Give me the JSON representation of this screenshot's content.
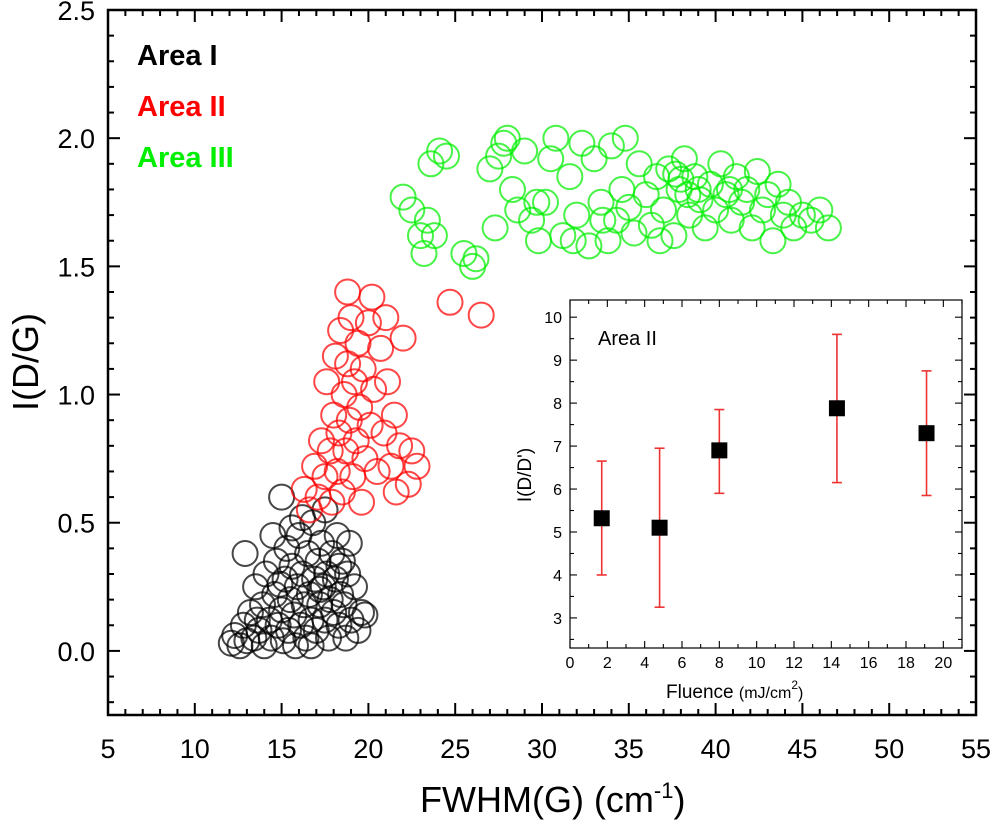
{
  "chart_data": [
    {
      "type": "scatter",
      "xlabel": "FWHM(G) (cm",
      "xlabel_superscript": "-1",
      "xlabel_suffix": ")",
      "ylabel": "I(D/G)",
      "xlim": [
        5,
        55
      ],
      "ylim": [
        -0.25,
        2.5
      ],
      "xticks": [
        "5",
        "10",
        "15",
        "20",
        "25",
        "30",
        "35",
        "40",
        "45",
        "50",
        "55"
      ],
      "yticks": [
        "0.0",
        "0.5",
        "1.0",
        "1.5",
        "2.0",
        "2.5"
      ],
      "legend_position": "top-left",
      "marker": "open-circle",
      "series": [
        {
          "name": "Area I",
          "color": "#000000",
          "points": [
            [
              12.1,
              0.03
            ],
            [
              12.3,
              0.06
            ],
            [
              12.6,
              0.02
            ],
            [
              12.8,
              0.1
            ],
            [
              13.0,
              0.04
            ],
            [
              13.2,
              0.15
            ],
            [
              13.4,
              0.05
            ],
            [
              13.5,
              0.25
            ],
            [
              13.7,
              0.08
            ],
            [
              13.9,
              0.18
            ],
            [
              14.0,
              0.02
            ],
            [
              14.1,
              0.3
            ],
            [
              14.3,
              0.12
            ],
            [
              14.4,
              0.05
            ],
            [
              14.6,
              0.22
            ],
            [
              14.7,
              0.35
            ],
            [
              14.8,
              0.1
            ],
            [
              15.0,
              0.16
            ],
            [
              15.1,
              0.04
            ],
            [
              15.2,
              0.28
            ],
            [
              15.3,
              0.4
            ],
            [
              15.4,
              0.08
            ],
            [
              15.5,
              0.2
            ],
            [
              15.6,
              0.33
            ],
            [
              15.7,
              0.14
            ],
            [
              15.8,
              0.02
            ],
            [
              15.9,
              0.25
            ],
            [
              16.0,
              0.45
            ],
            [
              16.1,
              0.1
            ],
            [
              16.2,
              0.3
            ],
            [
              16.3,
              0.18
            ],
            [
              16.4,
              0.05
            ],
            [
              16.5,
              0.38
            ],
            [
              16.6,
              0.22
            ],
            [
              16.7,
              0.12
            ],
            [
              16.8,
              0.5
            ],
            [
              16.9,
              0.28
            ],
            [
              17.0,
              0.08
            ],
            [
              17.1,
              0.35
            ],
            [
              17.2,
              0.18
            ],
            [
              17.3,
              0.42
            ],
            [
              17.4,
              0.25
            ],
            [
              17.5,
              0.12
            ],
            [
              17.6,
              0.3
            ],
            [
              17.7,
              0.05
            ],
            [
              17.8,
              0.2
            ],
            [
              17.9,
              0.38
            ],
            [
              18.0,
              0.15
            ],
            [
              18.1,
              0.28
            ],
            [
              18.2,
              0.45
            ],
            [
              18.3,
              0.1
            ],
            [
              18.4,
              0.22
            ],
            [
              18.5,
              0.35
            ],
            [
              18.6,
              0.18
            ],
            [
              18.7,
              0.05
            ],
            [
              18.8,
              0.3
            ],
            [
              19.0,
              0.12
            ],
            [
              19.2,
              0.25
            ],
            [
              19.4,
              0.08
            ],
            [
              19.6,
              0.15
            ],
            [
              12.9,
              0.38
            ],
            [
              14.5,
              0.45
            ],
            [
              16.2,
              0.52
            ],
            [
              17.5,
              0.55
            ],
            [
              19.8,
              0.14
            ],
            [
              18.9,
              0.42
            ],
            [
              13.6,
              0.12
            ],
            [
              14.9,
              0.26
            ],
            [
              15.6,
              0.48
            ],
            [
              16.7,
              0.02
            ],
            [
              17.2,
              0.24
            ],
            [
              18.3,
              0.33
            ],
            [
              15.0,
              0.6
            ]
          ]
        },
        {
          "name": "Area II",
          "color": "#ff0000",
          "points": [
            [
              16.3,
              0.63
            ],
            [
              16.6,
              0.55
            ],
            [
              16.9,
              0.72
            ],
            [
              17.1,
              0.6
            ],
            [
              17.3,
              0.82
            ],
            [
              17.5,
              0.68
            ],
            [
              17.6,
              1.05
            ],
            [
              17.8,
              0.78
            ],
            [
              17.9,
              0.58
            ],
            [
              18.0,
              0.92
            ],
            [
              18.1,
              1.15
            ],
            [
              18.2,
              0.7
            ],
            [
              18.3,
              0.85
            ],
            [
              18.4,
              1.25
            ],
            [
              18.5,
              0.62
            ],
            [
              18.6,
              1.0
            ],
            [
              18.7,
              0.78
            ],
            [
              18.8,
              1.12
            ],
            [
              18.9,
              0.9
            ],
            [
              19.0,
              1.3
            ],
            [
              19.1,
              0.68
            ],
            [
              19.2,
              1.05
            ],
            [
              19.3,
              0.82
            ],
            [
              19.4,
              1.2
            ],
            [
              19.5,
              0.95
            ],
            [
              19.6,
              0.58
            ],
            [
              19.7,
              1.1
            ],
            [
              19.8,
              0.75
            ],
            [
              20.0,
              1.28
            ],
            [
              20.1,
              0.88
            ],
            [
              20.3,
              1.02
            ],
            [
              20.5,
              0.7
            ],
            [
              20.7,
              1.18
            ],
            [
              20.9,
              0.85
            ],
            [
              21.1,
              1.05
            ],
            [
              21.3,
              0.72
            ],
            [
              21.5,
              0.92
            ],
            [
              21.8,
              0.8
            ],
            [
              22.0,
              1.22
            ],
            [
              22.3,
              0.65
            ],
            [
              22.5,
              0.78
            ],
            [
              22.8,
              0.72
            ],
            [
              20.2,
              1.38
            ],
            [
              24.7,
              1.36
            ],
            [
              26.5,
              1.31
            ],
            [
              18.8,
              1.4
            ],
            [
              21.0,
              1.3
            ],
            [
              21.6,
              0.62
            ]
          ]
        },
        {
          "name": "Area III",
          "color": "#00ee00",
          "points": [
            [
              22.0,
              1.77
            ],
            [
              22.5,
              1.72
            ],
            [
              23.0,
              1.62
            ],
            [
              23.2,
              1.55
            ],
            [
              23.4,
              1.68
            ],
            [
              23.6,
              1.9
            ],
            [
              23.8,
              1.62
            ],
            [
              24.1,
              1.95
            ],
            [
              24.5,
              1.93
            ],
            [
              25.5,
              1.55
            ],
            [
              26.0,
              1.5
            ],
            [
              26.2,
              1.53
            ],
            [
              27.0,
              1.88
            ],
            [
              27.3,
              1.65
            ],
            [
              27.5,
              1.93
            ],
            [
              27.8,
              1.98
            ],
            [
              28.0,
              2.0
            ],
            [
              28.3,
              1.8
            ],
            [
              28.6,
              1.72
            ],
            [
              29.0,
              1.95
            ],
            [
              29.4,
              1.68
            ],
            [
              29.8,
              1.6
            ],
            [
              30.2,
              1.75
            ],
            [
              30.5,
              1.92
            ],
            [
              30.8,
              2.0
            ],
            [
              31.2,
              1.62
            ],
            [
              31.6,
              1.85
            ],
            [
              32.0,
              1.7
            ],
            [
              32.3,
              1.98
            ],
            [
              32.7,
              1.58
            ],
            [
              33.0,
              1.92
            ],
            [
              33.4,
              1.75
            ],
            [
              33.8,
              1.6
            ],
            [
              34.0,
              1.97
            ],
            [
              34.3,
              1.68
            ],
            [
              34.6,
              1.8
            ],
            [
              35.0,
              1.73
            ],
            [
              35.3,
              1.63
            ],
            [
              35.6,
              1.9
            ],
            [
              36.0,
              1.78
            ],
            [
              36.3,
              1.66
            ],
            [
              36.6,
              1.85
            ],
            [
              37.0,
              1.72
            ],
            [
              37.3,
              1.88
            ],
            [
              37.6,
              1.62
            ],
            [
              37.9,
              1.8
            ],
            [
              38.2,
              1.92
            ],
            [
              38.5,
              1.7
            ],
            [
              38.8,
              1.85
            ],
            [
              39.1,
              1.76
            ],
            [
              39.4,
              1.65
            ],
            [
              39.7,
              1.82
            ],
            [
              40.0,
              1.72
            ],
            [
              40.3,
              1.9
            ],
            [
              40.6,
              1.78
            ],
            [
              40.9,
              1.68
            ],
            [
              41.2,
              1.85
            ],
            [
              41.5,
              1.75
            ],
            [
              41.8,
              1.8
            ],
            [
              42.1,
              1.65
            ],
            [
              42.4,
              1.87
            ],
            [
              42.7,
              1.72
            ],
            [
              43.0,
              1.78
            ],
            [
              43.3,
              1.6
            ],
            [
              43.6,
              1.82
            ],
            [
              43.9,
              1.7
            ],
            [
              44.2,
              1.75
            ],
            [
              44.5,
              1.65
            ],
            [
              45.0,
              1.7
            ],
            [
              45.5,
              1.68
            ],
            [
              46.0,
              1.72
            ],
            [
              46.5,
              1.65
            ],
            [
              38.0,
              1.84
            ],
            [
              38.4,
              1.78
            ],
            [
              37.7,
              1.86
            ],
            [
              39.0,
              1.8
            ],
            [
              34.8,
              2.0
            ],
            [
              31.8,
              1.6
            ],
            [
              36.8,
              1.6
            ],
            [
              33.5,
              1.68
            ],
            [
              29.7,
              1.75
            ],
            [
              40.8,
              1.8
            ]
          ]
        }
      ]
    },
    {
      "type": "scatter",
      "title": "Area II",
      "xlabel": "Fluence ",
      "xlabel_unit": "(mJ/cm",
      "xlabel_superscript": "2",
      "xlabel_suffix": ")",
      "ylabel": "I(D/D')",
      "xlim": [
        0,
        21
      ],
      "ylim": [
        2.3,
        10.4
      ],
      "xticks": [
        "0",
        "2",
        "4",
        "6",
        "8",
        "10",
        "12",
        "14",
        "16",
        "18",
        "20"
      ],
      "yticks": [
        "3",
        "4",
        "5",
        "6",
        "7",
        "8",
        "9",
        "10"
      ],
      "marker": "filled-square",
      "marker_color": "#000000",
      "errorbar_color": "#ee3333",
      "series": [
        {
          "name": "Area II",
          "points": [
            {
              "x": 1.7,
              "y": 5.32,
              "lo": 4.0,
              "hi": 6.65
            },
            {
              "x": 4.8,
              "y": 5.1,
              "lo": 3.25,
              "hi": 6.95
            },
            {
              "x": 8.0,
              "y": 6.9,
              "lo": 5.9,
              "hi": 7.85
            },
            {
              "x": 14.3,
              "y": 7.88,
              "lo": 6.15,
              "hi": 9.6
            },
            {
              "x": 19.1,
              "y": 7.3,
              "lo": 5.85,
              "hi": 8.75
            }
          ]
        }
      ]
    }
  ]
}
